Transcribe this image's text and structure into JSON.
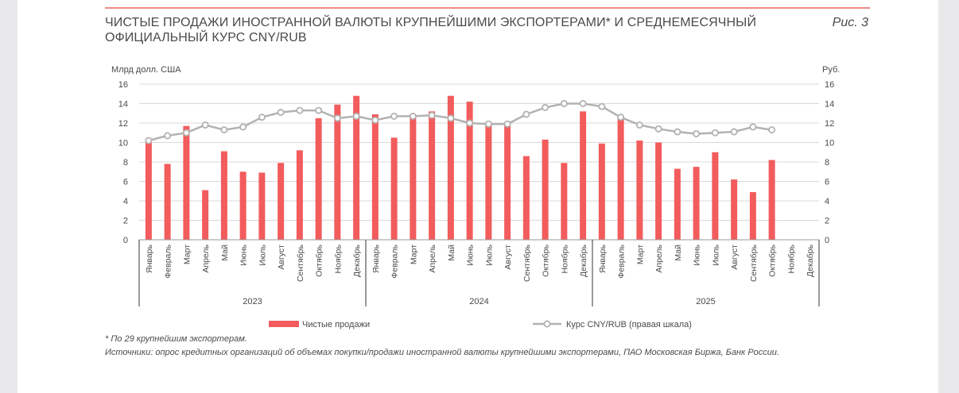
{
  "figure": {
    "title_line1": "ЧИСТЫЕ ПРОДАЖИ ИНОСТРАННОЙ ВАЛЮТЫ КРУПНЕЙШИМИ ЭКСПОРТЕРАМИ* И СРЕДНЕМЕСЯЧНЫЙ",
    "title_line2": "ОФИЦИАЛЬНЫЙ КУРС CNY/RUB",
    "label": "Рис. 3",
    "footnote": "* По 29 крупнейшим экспортерам.",
    "sources": "Источники: опрос кредитных организаций об объемах покупки/продажи иностранной валюты крупнейшими экспортерами, ПАО Московская Биржа, Банк России."
  },
  "colors": {
    "bar": "#f25c5c",
    "line": "#b2b2b2",
    "marker_fill": "#ffffff",
    "grid": "#d9d9d9",
    "text": "#4a4a4a",
    "rule": "#f08a86"
  },
  "chart_data": {
    "type": "bar",
    "title": "ЧИСТЫЕ ПРОДАЖИ ИНОСТРАННОЙ ВАЛЮТЫ КРУПНЕЙШИМИ ЭКСПОРТЕРАМИ* И СРЕДНЕМЕСЯЧНЫЙ ОФИЦИАЛЬНЫЙ КУРС CNY/RUB",
    "ylabel_left": "Млрд долл. США",
    "ylabel_right": "Руб.",
    "ylim_left": [
      0,
      16
    ],
    "ylim_right": [
      0,
      16
    ],
    "yticks": [
      0,
      2,
      4,
      6,
      8,
      10,
      12,
      14,
      16
    ],
    "grid": true,
    "legend_position": "bottom",
    "months": [
      "Январь",
      "Февраль",
      "Март",
      "Апрель",
      "Май",
      "Июнь",
      "Июль",
      "Август",
      "Сентябрь",
      "Октябрь",
      "Ноябрь",
      "Декабрь"
    ],
    "years": [
      "2023",
      "2024",
      "2025"
    ],
    "series": [
      {
        "name": "Чистые продажи",
        "type": "bar",
        "axis": "left",
        "values": [
          10.1,
          7.8,
          11.7,
          5.1,
          9.1,
          7.0,
          6.9,
          7.9,
          9.2,
          12.5,
          13.9,
          14.8,
          12.9,
          10.5,
          12.6,
          13.2,
          14.8,
          14.2,
          11.9,
          11.8,
          8.6,
          10.3,
          7.9,
          13.2,
          9.9,
          12.6,
          10.2,
          10.0,
          7.3,
          7.5,
          9.0,
          6.2,
          4.9,
          8.2,
          null,
          null
        ]
      },
      {
        "name": "Курс CNY/RUB (правая шкала)",
        "type": "line",
        "axis": "right",
        "values": [
          10.2,
          10.7,
          11.0,
          11.8,
          11.3,
          11.6,
          12.6,
          13.1,
          13.3,
          13.3,
          12.5,
          12.7,
          12.3,
          12.7,
          12.7,
          12.8,
          12.5,
          12.0,
          11.9,
          11.9,
          12.9,
          13.6,
          14.0,
          14.0,
          13.7,
          12.6,
          11.8,
          11.4,
          11.1,
          10.9,
          11.0,
          11.1,
          11.6,
          11.3,
          null,
          null
        ]
      }
    ]
  }
}
